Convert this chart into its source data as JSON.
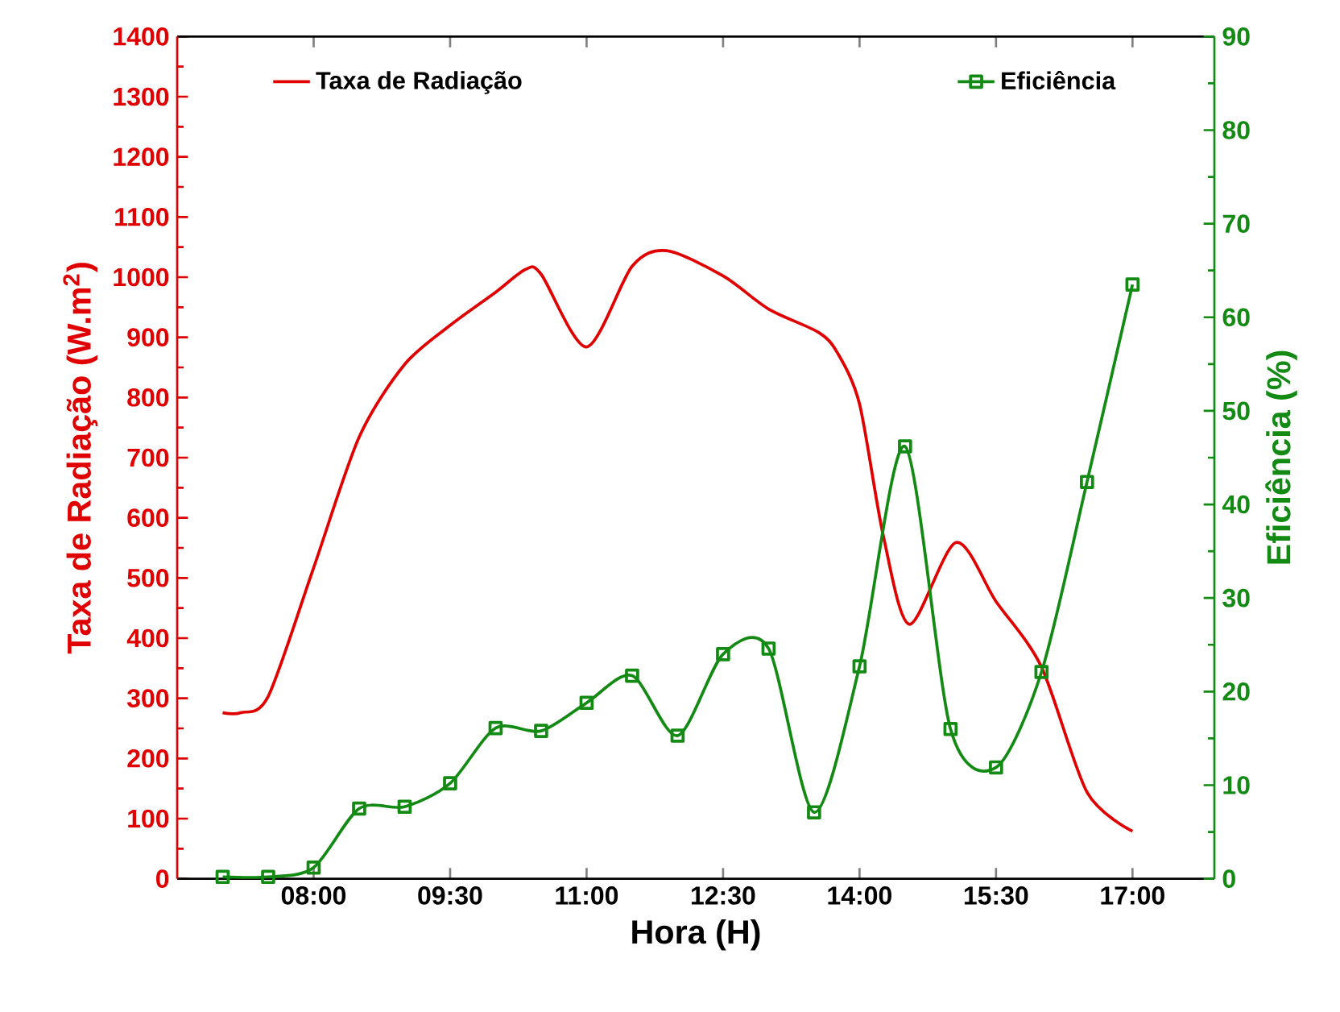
{
  "chart_data": {
    "type": "line",
    "xlabel": "Hora (H)",
    "ylabel": "Taxa de Radiação (W.m$^{2}$)",
    "y2label": "Eficiência (%)",
    "xlim": [
      6.5,
      17.9
    ],
    "xticks": [
      {
        "value": 8,
        "label": "08:00"
      },
      {
        "value": 9.5,
        "label": "09:30"
      },
      {
        "value": 11,
        "label": "11:00"
      },
      {
        "value": 12.5,
        "label": "12:30"
      },
      {
        "value": 14,
        "label": "14:00"
      },
      {
        "value": 15.5,
        "label": "15:30"
      },
      {
        "value": 17,
        "label": "17:00"
      }
    ],
    "ylim": [
      0,
      1400
    ],
    "yticks": [
      0,
      100,
      200,
      300,
      400,
      500,
      600,
      700,
      800,
      900,
      1000,
      1100,
      1200,
      1300,
      1400
    ],
    "y2lim": [
      0,
      90
    ],
    "y2ticks": [
      0,
      10,
      20,
      30,
      40,
      50,
      60,
      70,
      80,
      90
    ],
    "legend": "top",
    "series": [
      {
        "name": "Taxa de Radiação",
        "color": "#e00000",
        "marker": "none",
        "x": [
          7.0,
          7.2,
          7.5,
          8.0,
          8.5,
          9.0,
          9.5,
          10.0,
          10.33,
          10.5,
          11.0,
          11.5,
          11.88,
          12.5,
          13.0,
          13.54,
          13.75,
          14.0,
          14.26,
          14.55,
          15.06,
          15.5,
          16.0,
          16.5,
          17.0
        ],
        "values": [
          276,
          276,
          303,
          517,
          734,
          855,
          920,
          975,
          1013,
          1005,
          884,
          1018,
          1044,
          1002,
          947,
          909,
          876,
          789,
          571,
          423,
          559,
          461,
          352,
          144,
          79
        ]
      },
      {
        "name": "Eficiência",
        "color": "#138a13",
        "axis": "y2",
        "marker": "square",
        "x": [
          7.0,
          7.5,
          8.0,
          8.5,
          9.0,
          9.5,
          10.0,
          10.5,
          11.0,
          11.5,
          12.0,
          12.5,
          13.0,
          13.5,
          14.0,
          14.5,
          15.0,
          15.5,
          16.0,
          16.5,
          17.0
        ],
        "values": [
          0.2,
          0.2,
          1.2,
          7.5,
          7.7,
          10.2,
          16.1,
          15.8,
          18.8,
          21.7,
          15.3,
          24.0,
          24.6,
          7.1,
          22.7,
          46.2,
          16.0,
          11.9,
          22.1,
          42.4,
          63.5
        ]
      }
    ]
  }
}
